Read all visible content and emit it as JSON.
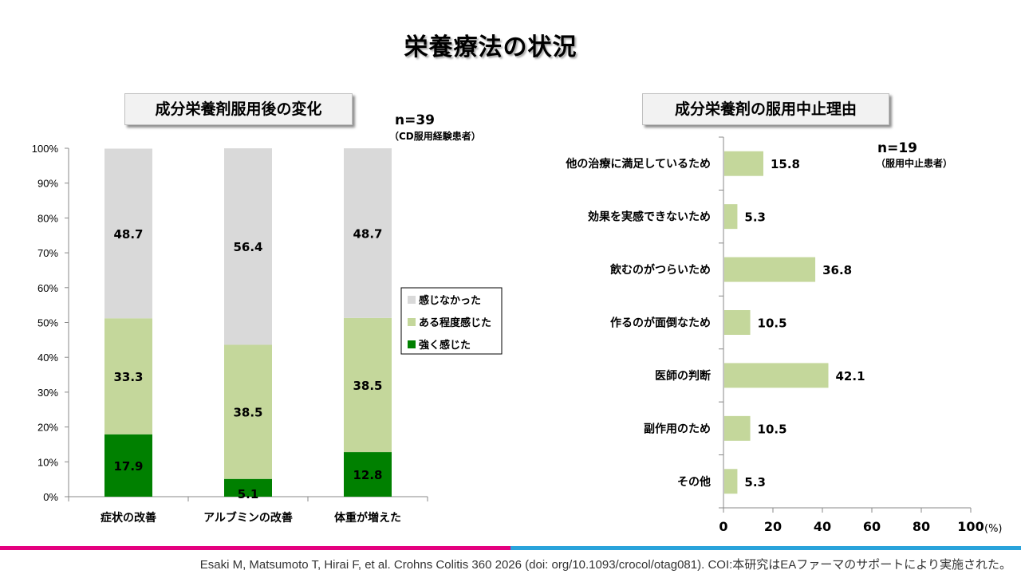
{
  "page": {
    "title": "栄養療法の状況",
    "footer": "Esaki M, Matsumoto T, Hirai F, et al. Crohns Colitis 360 2026 (doi: org/10.1093/crocol/otag081). COI:本研究はEAファーマのサポートにより実施された。",
    "colors": {
      "accent_left": "#e4007f",
      "accent_right": "#29a3db"
    }
  },
  "chart_data": [
    {
      "type": "bar",
      "stacked": true,
      "title": "成分栄養剤服用後の変化",
      "n_label": "n=39",
      "n_sublabel": "（CD服用経験患者）",
      "categories": [
        "症状の改善",
        "アルブミンの改善",
        "体重が増えた"
      ],
      "series": [
        {
          "name": "強く感じた",
          "values": [
            17.9,
            5.1,
            12.8
          ],
          "color": "#008000"
        },
        {
          "name": "ある程度感じた",
          "values": [
            33.3,
            38.5,
            38.5
          ],
          "color": "#c4d79b"
        },
        {
          "name": "感じなかった",
          "values": [
            48.7,
            56.4,
            48.7
          ],
          "color": "#d9d9d9"
        }
      ],
      "legend_order": [
        "感じなかった",
        "ある程度感じた",
        "強く感じた"
      ],
      "ylim": [
        0,
        100
      ],
      "yticks": [
        "0%",
        "10%",
        "20%",
        "30%",
        "40%",
        "50%",
        "60%",
        "70%",
        "80%",
        "90%",
        "100%"
      ],
      "legend_position": "right"
    },
    {
      "type": "bar",
      "orientation": "horizontal",
      "title": "成分栄養剤の服用中止理由",
      "n_label": "n=19",
      "n_sublabel": "（服用中止患者）",
      "categories": [
        "他の治療に満足しているため",
        "効果を実感できないため",
        "飲むのがつらいため",
        "作るのが面倒なため",
        "医師の判断",
        "副作用のため",
        "その他"
      ],
      "values": [
        15.8,
        5.3,
        36.8,
        10.5,
        42.1,
        10.5,
        5.3
      ],
      "color": "#c4d79b",
      "xlim": [
        0,
        100
      ],
      "xticks": [
        "0",
        "20",
        "40",
        "60",
        "80",
        "100"
      ],
      "xunit": "(%)"
    }
  ]
}
